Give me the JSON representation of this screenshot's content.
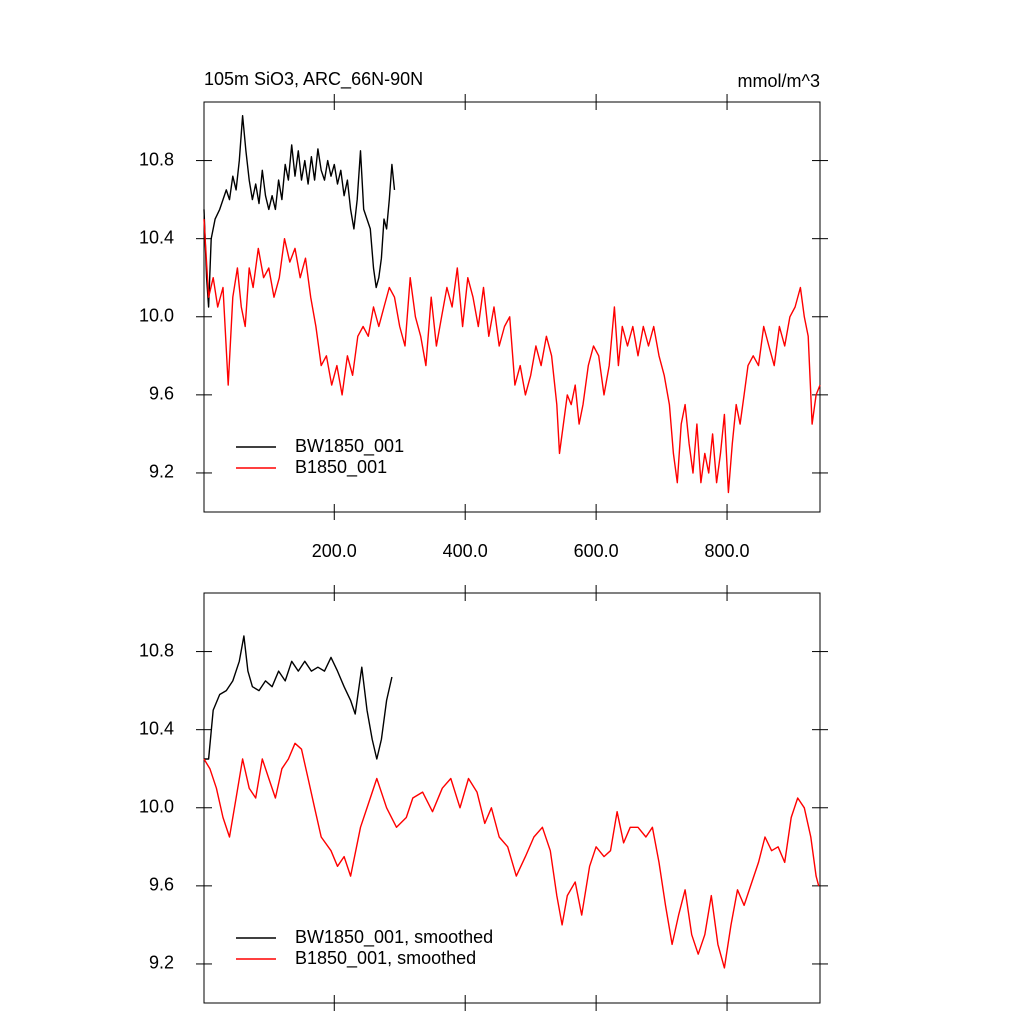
{
  "chart_data": [
    {
      "type": "line",
      "title": "105m SiO3, ARC_66N-90N",
      "units": "mmol/m^3",
      "xlim": [
        1,
        942
      ],
      "ylim": [
        9.0,
        11.1
      ],
      "xticks": [
        {
          "value": 200,
          "label": "200.0"
        },
        {
          "value": 400,
          "label": "400.0"
        },
        {
          "value": 600,
          "label": "600.0"
        },
        {
          "value": 800,
          "label": "800.0"
        }
      ],
      "xtick_labels": true,
      "yticks": [
        9.2,
        9.6,
        {
          "value": 10,
          "label": "10.0"
        },
        10.4,
        10.8
      ],
      "legend": "lower left",
      "series": [
        {
          "name": "BW1850_001",
          "color": "#000000",
          "x": [
            1,
            5,
            8,
            12,
            18,
            25,
            30,
            35,
            40,
            45,
            50,
            55,
            60,
            65,
            70,
            75,
            80,
            85,
            90,
            95,
            100,
            105,
            110,
            115,
            120,
            125,
            130,
            135,
            140,
            145,
            150,
            155,
            160,
            165,
            170,
            175,
            180,
            185,
            190,
            195,
            200,
            205,
            210,
            215,
            220,
            225,
            230,
            235,
            240,
            245,
            250,
            255,
            260,
            264,
            268,
            272,
            276,
            280,
            284,
            288,
            292
          ],
          "values": [
            10.55,
            10.2,
            10.05,
            10.4,
            10.5,
            10.55,
            10.6,
            10.65,
            10.6,
            10.72,
            10.65,
            10.8,
            11.03,
            10.85,
            10.7,
            10.6,
            10.68,
            10.58,
            10.75,
            10.62,
            10.55,
            10.62,
            10.55,
            10.7,
            10.6,
            10.78,
            10.7,
            10.88,
            10.72,
            10.85,
            10.7,
            10.8,
            10.68,
            10.82,
            10.7,
            10.86,
            10.75,
            10.7,
            10.8,
            10.72,
            10.78,
            10.68,
            10.75,
            10.62,
            10.7,
            10.55,
            10.45,
            10.6,
            10.85,
            10.55,
            10.5,
            10.45,
            10.25,
            10.15,
            10.2,
            10.3,
            10.5,
            10.45,
            10.6,
            10.78,
            10.65
          ]
        },
        {
          "name": "B1850_001",
          "color": "#ff0000",
          "x": [
            1,
            8,
            15,
            22,
            30,
            38,
            45,
            52,
            58,
            64,
            70,
            76,
            84,
            92,
            100,
            108,
            116,
            124,
            132,
            140,
            148,
            156,
            164,
            172,
            180,
            188,
            196,
            204,
            212,
            220,
            228,
            236,
            244,
            252,
            260,
            268,
            276,
            284,
            292,
            300,
            308,
            316,
            324,
            332,
            340,
            348,
            356,
            364,
            372,
            380,
            388,
            396,
            404,
            412,
            420,
            428,
            436,
            444,
            452,
            460,
            468,
            476,
            484,
            492,
            500,
            508,
            516,
            524,
            532,
            540,
            544,
            550,
            556,
            562,
            568,
            574,
            580,
            588,
            596,
            604,
            612,
            620,
            628,
            634,
            640,
            648,
            656,
            664,
            672,
            680,
            688,
            696,
            704,
            712,
            718,
            724,
            730,
            736,
            742,
            748,
            754,
            760,
            766,
            772,
            778,
            784,
            790,
            796,
            802,
            808,
            814,
            820,
            826,
            832,
            840,
            848,
            856,
            864,
            872,
            880,
            888,
            896,
            904,
            912,
            918,
            924,
            930,
            936,
            942
          ],
          "values": [
            10.5,
            10.1,
            10.2,
            10.05,
            10.15,
            9.65,
            10.1,
            10.25,
            10.05,
            9.95,
            10.25,
            10.15,
            10.35,
            10.2,
            10.25,
            10.1,
            10.2,
            10.4,
            10.28,
            10.35,
            10.2,
            10.3,
            10.1,
            9.95,
            9.75,
            9.8,
            9.65,
            9.75,
            9.6,
            9.8,
            9.7,
            9.9,
            9.95,
            9.9,
            10.05,
            9.95,
            10.05,
            10.15,
            10.1,
            9.95,
            9.85,
            10.2,
            10.0,
            9.9,
            9.75,
            10.1,
            9.85,
            10.0,
            10.15,
            10.05,
            10.25,
            9.95,
            10.2,
            10.1,
            9.95,
            10.15,
            9.9,
            10.05,
            9.85,
            9.95,
            10.0,
            9.65,
            9.75,
            9.6,
            9.7,
            9.85,
            9.75,
            9.9,
            9.8,
            9.55,
            9.3,
            9.45,
            9.6,
            9.55,
            9.65,
            9.45,
            9.55,
            9.75,
            9.85,
            9.8,
            9.6,
            9.75,
            10.05,
            9.75,
            9.95,
            9.85,
            9.95,
            9.8,
            9.95,
            9.85,
            9.95,
            9.8,
            9.7,
            9.55,
            9.3,
            9.15,
            9.45,
            9.55,
            9.35,
            9.2,
            9.45,
            9.15,
            9.3,
            9.2,
            9.4,
            9.15,
            9.3,
            9.5,
            9.1,
            9.35,
            9.55,
            9.45,
            9.6,
            9.75,
            9.8,
            9.75,
            9.95,
            9.85,
            9.75,
            9.95,
            9.85,
            10.0,
            10.05,
            10.15,
            10.0,
            9.9,
            9.45,
            9.6,
            9.65
          ]
        }
      ]
    },
    {
      "type": "line",
      "xlim": [
        1,
        942
      ],
      "ylim": [
        9.0,
        11.1
      ],
      "xticks": [
        200,
        400,
        600,
        800
      ],
      "xtick_labels": false,
      "yticks": [
        9.2,
        9.6,
        {
          "value": 10,
          "label": "10.0"
        },
        10.4,
        10.8
      ],
      "legend": "lower left",
      "series": [
        {
          "name": "BW1850_001, smoothed",
          "color": "#000000",
          "x": [
            1,
            8,
            15,
            25,
            35,
            45,
            55,
            62,
            68,
            75,
            85,
            95,
            105,
            115,
            125,
            135,
            145,
            155,
            165,
            175,
            185,
            195,
            205,
            215,
            225,
            232,
            242,
            250,
            258,
            265,
            272,
            280,
            288
          ],
          "values": [
            10.25,
            10.25,
            10.5,
            10.58,
            10.6,
            10.65,
            10.75,
            10.88,
            10.7,
            10.62,
            10.6,
            10.65,
            10.62,
            10.7,
            10.65,
            10.75,
            10.7,
            10.75,
            10.7,
            10.72,
            10.7,
            10.77,
            10.7,
            10.62,
            10.55,
            10.48,
            10.72,
            10.5,
            10.35,
            10.25,
            10.35,
            10.55,
            10.67
          ]
        },
        {
          "name": "B1850_001, smoothed",
          "color": "#ff0000",
          "x": [
            1,
            10,
            20,
            30,
            40,
            50,
            60,
            70,
            80,
            90,
            100,
            110,
            120,
            130,
            140,
            150,
            160,
            170,
            180,
            195,
            205,
            215,
            225,
            240,
            255,
            265,
            280,
            295,
            310,
            320,
            335,
            350,
            365,
            378,
            392,
            405,
            418,
            430,
            440,
            452,
            465,
            478,
            492,
            505,
            518,
            530,
            540,
            548,
            556,
            568,
            578,
            590,
            600,
            612,
            622,
            632,
            642,
            652,
            664,
            676,
            686,
            696,
            706,
            716,
            726,
            736,
            746,
            756,
            766,
            776,
            786,
            796,
            806,
            816,
            826,
            836,
            848,
            858,
            868,
            878,
            888,
            898,
            908,
            918,
            928,
            936,
            940
          ],
          "values": [
            10.25,
            10.2,
            10.1,
            9.95,
            9.85,
            10.05,
            10.25,
            10.1,
            10.05,
            10.25,
            10.15,
            10.05,
            10.2,
            10.25,
            10.33,
            10.3,
            10.15,
            10.0,
            9.85,
            9.78,
            9.7,
            9.75,
            9.65,
            9.9,
            10.05,
            10.15,
            10.0,
            9.9,
            9.95,
            10.05,
            10.08,
            9.98,
            10.1,
            10.15,
            10.0,
            10.15,
            10.08,
            9.92,
            10.0,
            9.85,
            9.8,
            9.65,
            9.75,
            9.85,
            9.9,
            9.78,
            9.55,
            9.4,
            9.55,
            9.62,
            9.45,
            9.7,
            9.8,
            9.75,
            9.78,
            9.98,
            9.82,
            9.9,
            9.9,
            9.85,
            9.9,
            9.72,
            9.5,
            9.3,
            9.45,
            9.58,
            9.35,
            9.25,
            9.35,
            9.55,
            9.3,
            9.18,
            9.4,
            9.58,
            9.5,
            9.6,
            9.72,
            9.85,
            9.78,
            9.8,
            9.72,
            9.95,
            10.05,
            10.0,
            9.85,
            9.65,
            9.6
          ]
        }
      ]
    }
  ]
}
